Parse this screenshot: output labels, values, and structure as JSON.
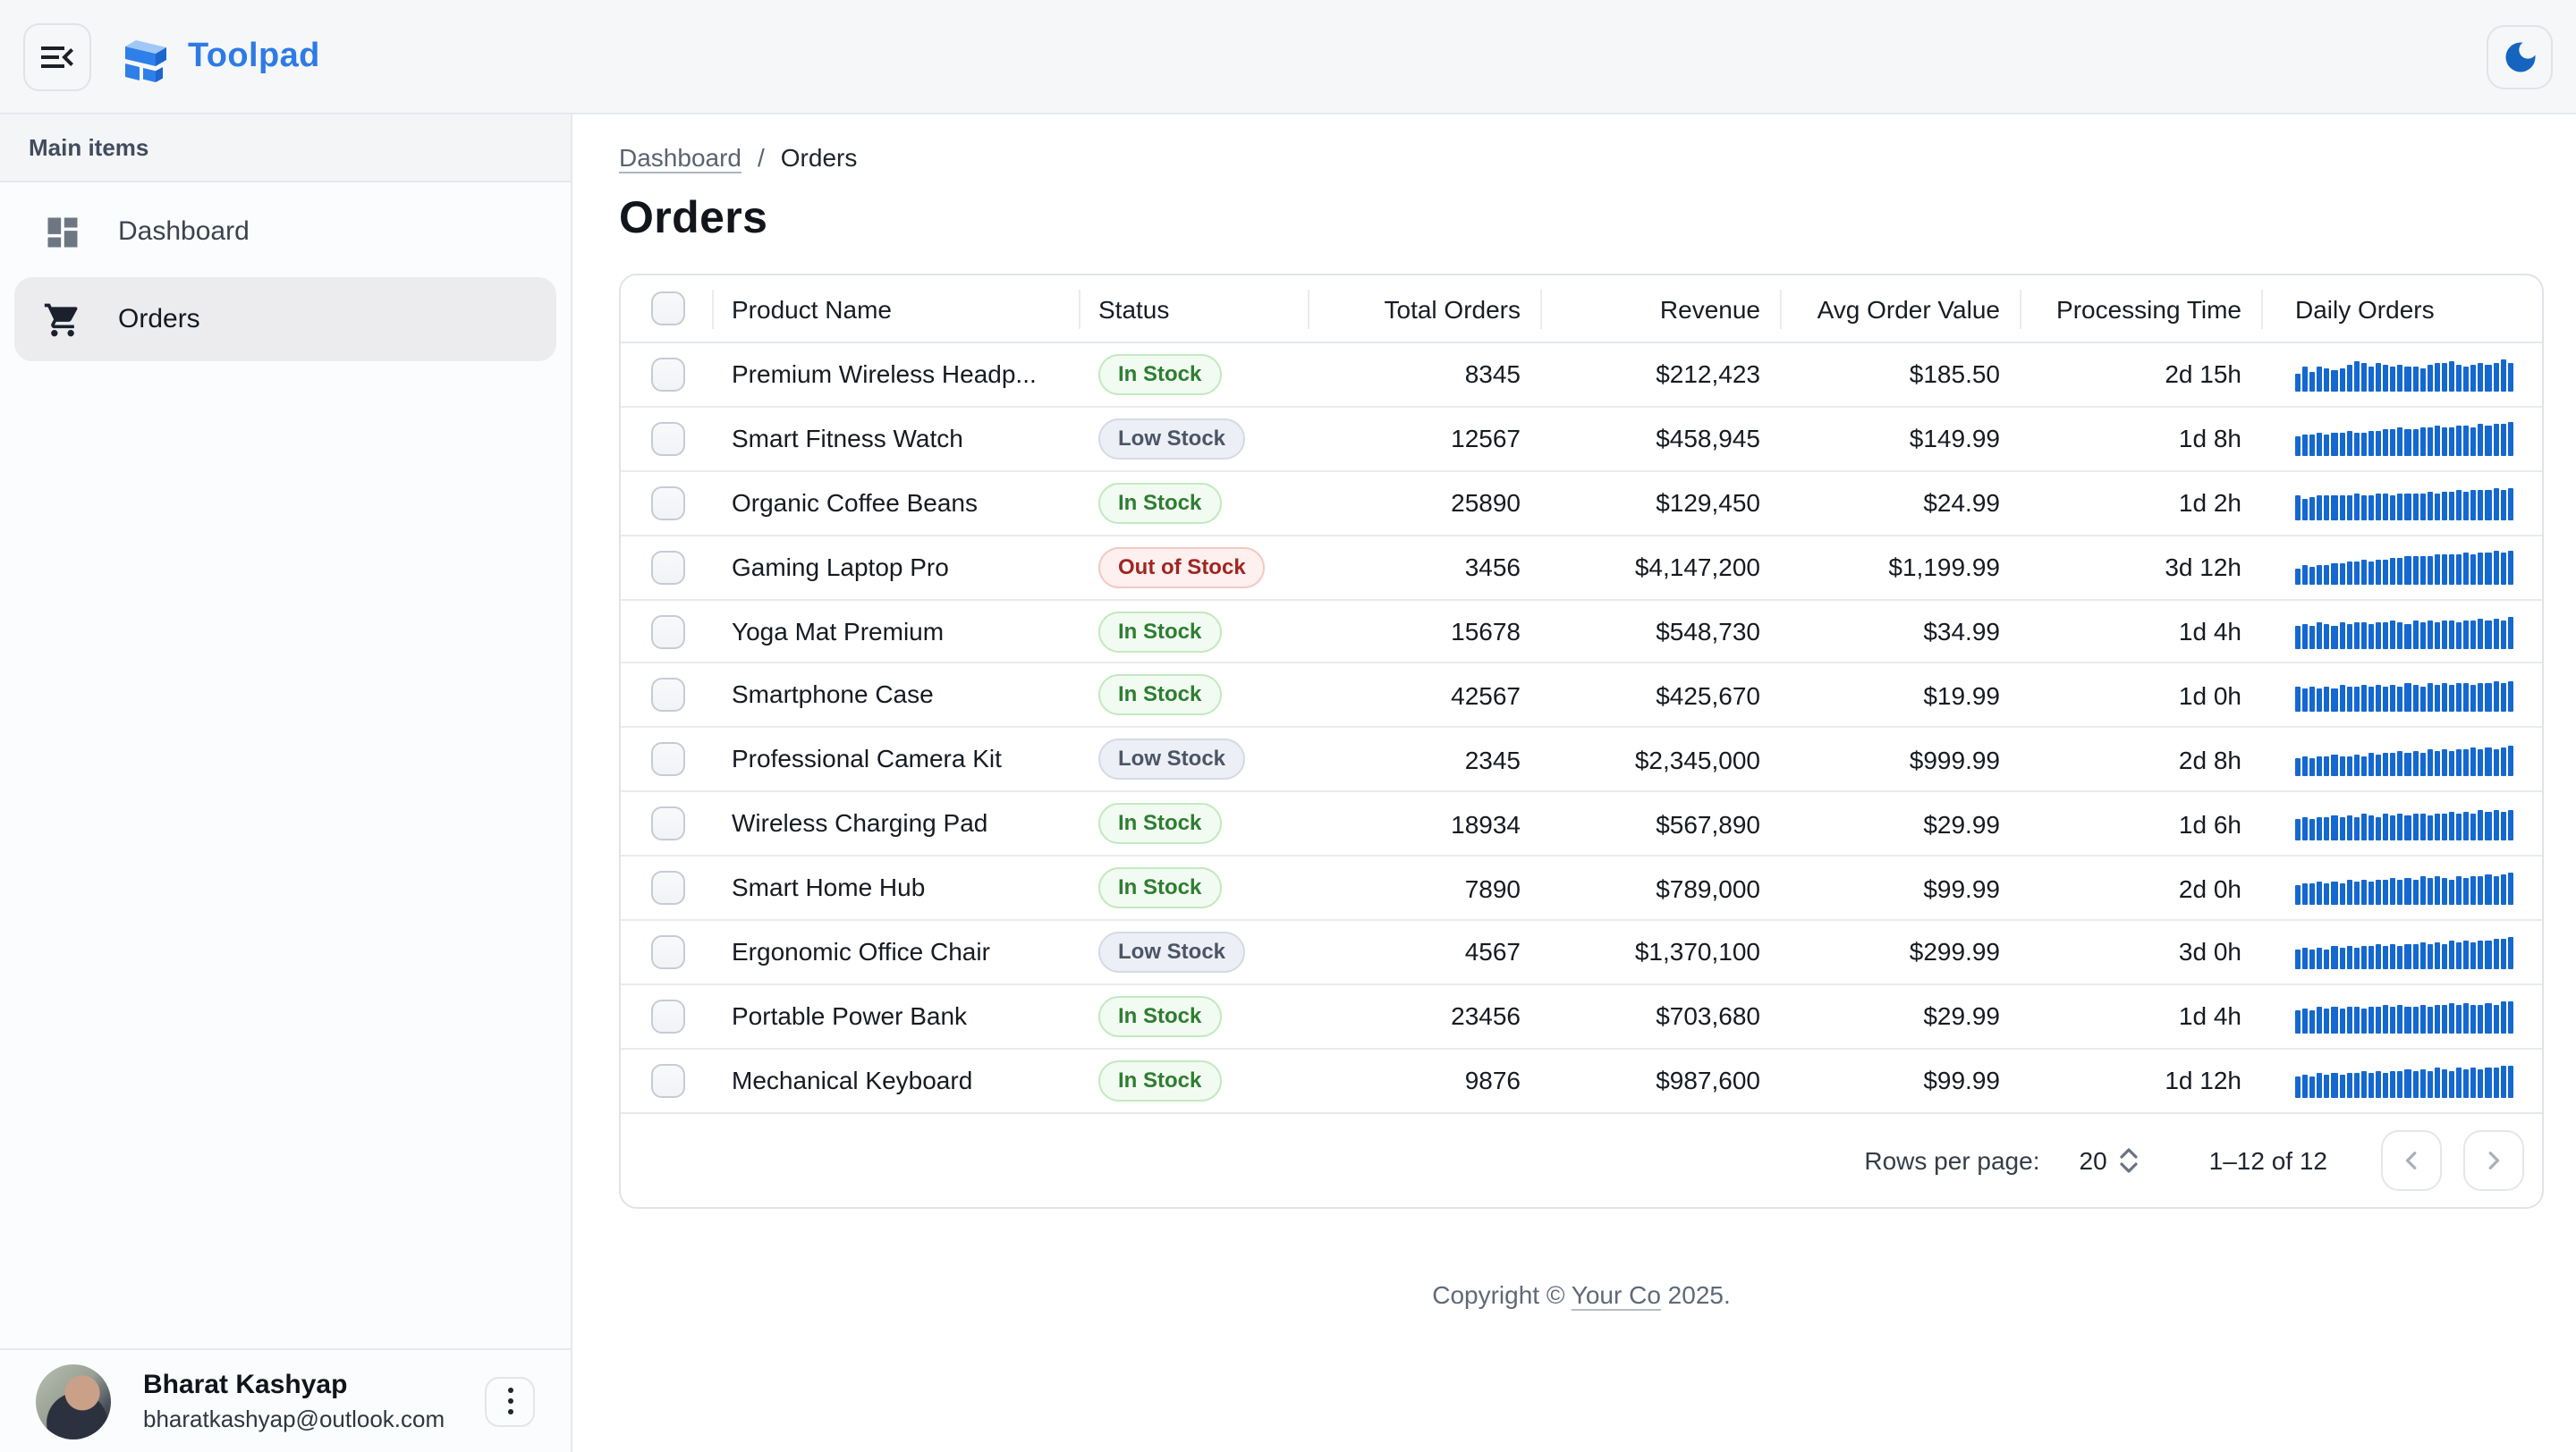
{
  "app": {
    "name": "Toolpad"
  },
  "theme": {
    "brand_color": "#2e7be6",
    "logo_light_blue": "#9fc8f7",
    "logo_blue": "#2e7fe8",
    "logo_dark_blue": "#1b66cf",
    "moon_color": "#1565c0",
    "sparkline_color": "#1568cf",
    "selected_nav_bg": "#ececef",
    "status_colors": {
      "in": {
        "text": "#2e7d32",
        "bg": "#f2fbf2",
        "border": "#c3e9c0"
      },
      "low": {
        "text": "#4b5565",
        "bg": "#eceff6",
        "border": "#d5dae4"
      },
      "out": {
        "text": "#a02622",
        "bg": "#fdf0ef",
        "border": "#f2c9c4"
      }
    }
  },
  "icons": {
    "header_left": "menu-collapse-icon",
    "header_right": "dark-mode-moon-icon",
    "nav": [
      "dashboard-grid-icon",
      "shopping-cart-icon"
    ],
    "user_menu": "kebab-menu-icon",
    "pagination": [
      "chevron-left-icon",
      "chevron-right-icon"
    ],
    "rows_per_page": "up-down-caret-icon"
  },
  "sidebar": {
    "section_label": "Main items",
    "items": [
      {
        "label": "Dashboard",
        "selected": false
      },
      {
        "label": "Orders",
        "selected": true
      }
    ]
  },
  "breadcrumb": {
    "link": "Dashboard",
    "separator": "/",
    "current": "Orders"
  },
  "page": {
    "title": "Orders"
  },
  "table": {
    "columns": [
      {
        "key": "check",
        "label": ""
      },
      {
        "key": "name",
        "label": "Product Name"
      },
      {
        "key": "status",
        "label": "Status"
      },
      {
        "key": "total",
        "label": "Total Orders"
      },
      {
        "key": "revenue",
        "label": "Revenue"
      },
      {
        "key": "avg",
        "label": "Avg Order Value"
      },
      {
        "key": "time",
        "label": "Processing Time"
      },
      {
        "key": "daily",
        "label": "Daily Orders"
      }
    ],
    "rows": [
      {
        "name": "Premium Wireless Headp...",
        "status": "In Stock",
        "status_type": "in",
        "total": "8345",
        "revenue": "$212,423",
        "avg": "$185.50",
        "time": "2d 15h",
        "sparkline": [
          55,
          72,
          60,
          76,
          66,
          62,
          70,
          78,
          88,
          84,
          76,
          82,
          78,
          74,
          80,
          72,
          76,
          70,
          78,
          82,
          86,
          90,
          78,
          74,
          80,
          84,
          78,
          82,
          92,
          86
        ]
      },
      {
        "name": "Smart Fitness Watch",
        "status": "Low Stock",
        "status_type": "low",
        "total": "12567",
        "revenue": "$458,945",
        "avg": "$149.99",
        "time": "1d 8h",
        "sparkline": [
          58,
          62,
          60,
          66,
          64,
          68,
          66,
          72,
          70,
          68,
          74,
          72,
          78,
          76,
          82,
          80,
          78,
          84,
          82,
          88,
          86,
          84,
          90,
          88,
          86,
          92,
          90,
          94,
          92,
          98
        ]
      },
      {
        "name": "Organic Coffee Beans",
        "status": "In Stock",
        "status_type": "in",
        "total": "25890",
        "revenue": "$129,450",
        "avg": "$24.99",
        "time": "1d 2h",
        "sparkline": [
          70,
          64,
          68,
          72,
          70,
          74,
          72,
          70,
          76,
          74,
          72,
          78,
          76,
          74,
          78,
          76,
          80,
          78,
          82,
          80,
          84,
          82,
          86,
          84,
          88,
          86,
          90,
          92,
          90,
          94
        ]
      },
      {
        "name": "Gaming Laptop Pro",
        "status": "Out of Stock",
        "status_type": "out",
        "total": "3456",
        "revenue": "$4,147,200",
        "avg": "$1,199.99",
        "time": "3d 12h",
        "sparkline": [
          48,
          54,
          50,
          58,
          56,
          62,
          60,
          66,
          64,
          70,
          68,
          74,
          72,
          78,
          76,
          82,
          80,
          84,
          82,
          88,
          86,
          90,
          88,
          92,
          90,
          94,
          92,
          96,
          94,
          98
        ]
      },
      {
        "name": "Yoga Mat Premium",
        "status": "In Stock",
        "status_type": "in",
        "total": "15678",
        "revenue": "$548,730",
        "avg": "$34.99",
        "time": "1d 4h",
        "sparkline": [
          66,
          72,
          64,
          74,
          70,
          66,
          76,
          72,
          78,
          74,
          70,
          78,
          74,
          80,
          76,
          72,
          80,
          76,
          82,
          78,
          84,
          80,
          76,
          84,
          80,
          86,
          82,
          88,
          84,
          90
        ]
      },
      {
        "name": "Smartphone Case",
        "status": "In Stock",
        "status_type": "in",
        "total": "42567",
        "revenue": "$425,670",
        "avg": "$19.99",
        "time": "1d 0h",
        "sparkline": [
          74,
          68,
          76,
          70,
          78,
          72,
          80,
          74,
          78,
          82,
          76,
          80,
          74,
          82,
          78,
          84,
          80,
          76,
          84,
          80,
          86,
          82,
          88,
          84,
          80,
          88,
          84,
          90,
          86,
          92
        ]
      },
      {
        "name": "Professional Camera Kit",
        "status": "Low Stock",
        "status_type": "low",
        "total": "2345",
        "revenue": "$2,345,000",
        "avg": "$999.99",
        "time": "2d 8h",
        "sparkline": [
          52,
          58,
          54,
          62,
          58,
          66,
          62,
          58,
          66,
          62,
          70,
          66,
          72,
          68,
          74,
          70,
          76,
          72,
          78,
          74,
          80,
          76,
          82,
          78,
          84,
          80,
          86,
          82,
          88,
          92
        ]
      },
      {
        "name": "Wireless Charging Pad",
        "status": "In Stock",
        "status_type": "in",
        "total": "18934",
        "revenue": "$567,890",
        "avg": "$29.99",
        "time": "1d 6h",
        "sparkline": [
          64,
          70,
          66,
          72,
          68,
          74,
          70,
          76,
          72,
          78,
          74,
          70,
          78,
          74,
          80,
          76,
          82,
          78,
          74,
          82,
          78,
          84,
          80,
          86,
          82,
          88,
          84,
          90,
          86,
          92
        ]
      },
      {
        "name": "Smart Home Hub",
        "status": "In Stock",
        "status_type": "in",
        "total": "7890",
        "revenue": "$789,000",
        "avg": "$99.99",
        "time": "2d 0h",
        "sparkline": [
          60,
          66,
          62,
          68,
          64,
          70,
          66,
          72,
          68,
          74,
          70,
          76,
          72,
          78,
          74,
          80,
          76,
          82,
          78,
          84,
          80,
          76,
          84,
          80,
          86,
          82,
          88,
          84,
          90,
          94
        ]
      },
      {
        "name": "Ergonomic Office Chair",
        "status": "Low Stock",
        "status_type": "low",
        "total": "4567",
        "revenue": "$1,370,100",
        "avg": "$299.99",
        "time": "3d 0h",
        "sparkline": [
          56,
          62,
          58,
          64,
          60,
          66,
          62,
          68,
          64,
          70,
          66,
          72,
          68,
          74,
          70,
          76,
          72,
          78,
          74,
          80,
          76,
          82,
          78,
          84,
          80,
          86,
          82,
          88,
          90,
          94
        ]
      },
      {
        "name": "Portable Power Bank",
        "status": "In Stock",
        "status_type": "in",
        "total": "23456",
        "revenue": "$703,680",
        "avg": "$29.99",
        "time": "1d 4h",
        "sparkline": [
          68,
          74,
          70,
          76,
          72,
          78,
          74,
          80,
          76,
          72,
          80,
          76,
          82,
          78,
          84,
          80,
          76,
          84,
          80,
          86,
          82,
          88,
          84,
          90,
          86,
          82,
          90,
          86,
          92,
          96
        ]
      },
      {
        "name": "Mechanical Keyboard",
        "status": "In Stock",
        "status_type": "in",
        "total": "9876",
        "revenue": "$987,600",
        "avg": "$99.99",
        "time": "1d 12h",
        "sparkline": [
          62,
          68,
          64,
          70,
          66,
          72,
          68,
          74,
          70,
          76,
          72,
          78,
          74,
          80,
          76,
          82,
          78,
          84,
          80,
          86,
          82,
          78,
          86,
          82,
          88,
          84,
          90,
          86,
          92,
          96
        ]
      }
    ]
  },
  "pagination": {
    "rows_per_page_label": "Rows per page:",
    "rows_per_page": "20",
    "range": "1–12 of 12"
  },
  "footer": {
    "prefix": "Copyright © ",
    "company": "Your Co",
    "suffix": " 2025."
  },
  "user": {
    "name": "Bharat Kashyap",
    "email": "bharatkashyap@outlook.com"
  }
}
